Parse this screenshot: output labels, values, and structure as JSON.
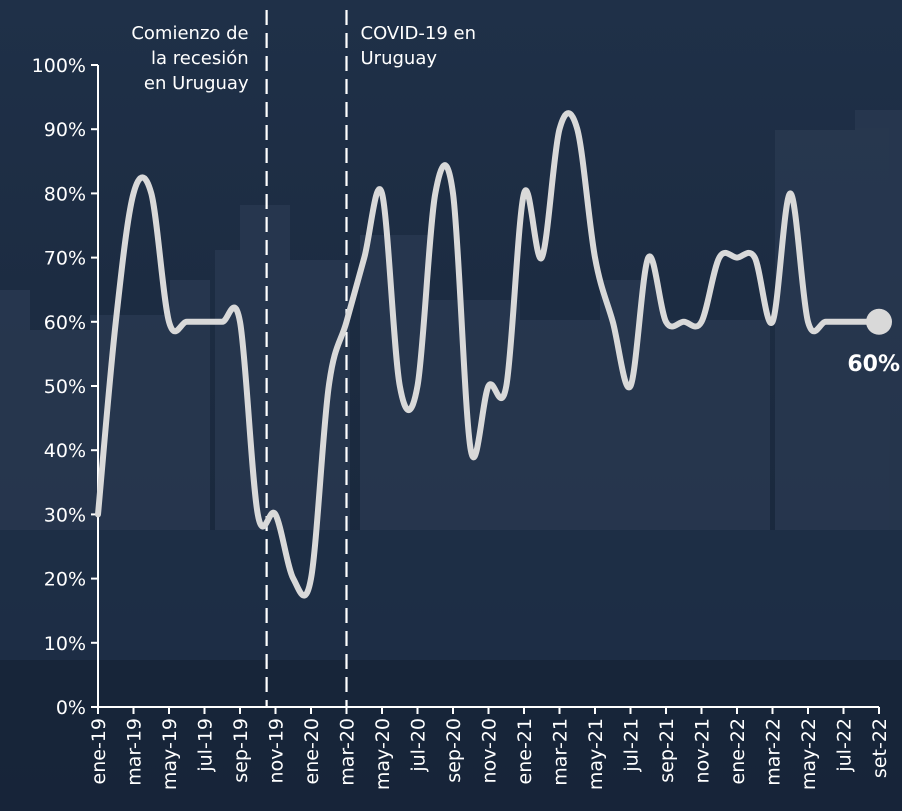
{
  "chart_data": {
    "type": "line",
    "title": "",
    "xlabel": "",
    "ylabel": "",
    "ylim": [
      0,
      100
    ],
    "y_ticks": [
      "0%",
      "10%",
      "20%",
      "30%",
      "40%",
      "50%",
      "60%",
      "70%",
      "80%",
      "90%",
      "100%"
    ],
    "x_tick_labels": [
      "ene-19",
      "mar-19",
      "may-19",
      "jul-19",
      "sep-19",
      "nov-19",
      "ene-20",
      "mar-20",
      "may-20",
      "jul-20",
      "sep-20",
      "nov-20",
      "ene-21",
      "mar-21",
      "may-21",
      "jul-21",
      "sep-21",
      "nov-21",
      "ene-22",
      "mar-22",
      "may-22",
      "jul-22",
      "set-22"
    ],
    "months": [
      "ene-19",
      "feb-19",
      "mar-19",
      "abr-19",
      "may-19",
      "jun-19",
      "jul-19",
      "ago-19",
      "sep-19",
      "oct-19",
      "nov-19",
      "dic-19",
      "ene-20",
      "feb-20",
      "mar-20",
      "abr-20",
      "may-20",
      "jun-20",
      "jul-20",
      "ago-20",
      "sep-20",
      "oct-20",
      "nov-20",
      "dic-20",
      "ene-21",
      "feb-21",
      "mar-21",
      "abr-21",
      "may-21",
      "jun-21",
      "jul-21",
      "ago-21",
      "sep-21",
      "oct-21",
      "nov-21",
      "dic-21",
      "ene-22",
      "feb-22",
      "mar-22",
      "abr-22",
      "may-22",
      "jun-22",
      "jul-22",
      "ago-22",
      "set-22"
    ],
    "series": [
      {
        "values": [
          30,
          60,
          80,
          80,
          60,
          60,
          60,
          60,
          60,
          30,
          30,
          20,
          20,
          50,
          60,
          70,
          80,
          50,
          50,
          80,
          80,
          40,
          50,
          50,
          80,
          70,
          90,
          90,
          70,
          60,
          50,
          70,
          60,
          60,
          60,
          70,
          70,
          70,
          60,
          80,
          60,
          60,
          60,
          60,
          60
        ],
        "color": "#d9d9d9"
      }
    ],
    "annotations": [
      {
        "month_index": 9.5,
        "text_lines": [
          "Comienzo de",
          "la recesión",
          "en Uruguay"
        ],
        "align": "right"
      },
      {
        "month_index": 14,
        "text_lines": [
          "COVID-19 en",
          "Uruguay"
        ],
        "align": "left"
      }
    ],
    "end_label": "60%",
    "grid": false,
    "legend": "none"
  },
  "colors": {
    "background": "#1c2b40",
    "line": "#d9d9d9",
    "axis": "#ffffff",
    "text": "#ffffff"
  }
}
